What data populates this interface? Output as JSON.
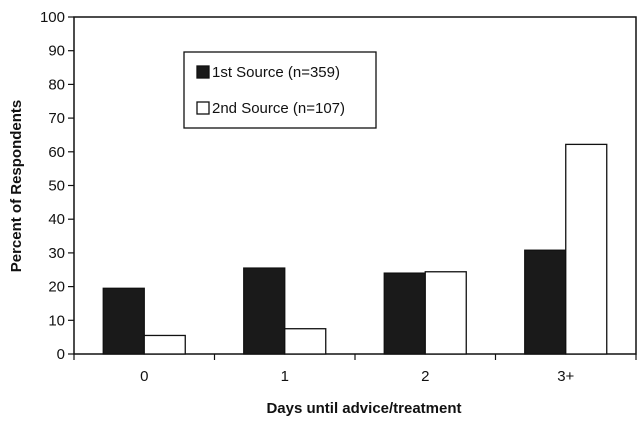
{
  "chart_data": {
    "type": "bar",
    "title": "",
    "xlabel": "Days until advice/treatment",
    "ylabel": "Percent of Respondents",
    "categories": [
      "0",
      "1",
      "2",
      "3+"
    ],
    "ylim": [
      0,
      100
    ],
    "yticks": [
      "0",
      "10",
      "20",
      "30",
      "40",
      "50",
      "60",
      "70",
      "80",
      "90",
      "100"
    ],
    "grid": false,
    "legend_placement": "top-left",
    "series": [
      {
        "name": "1st Source (n=359)",
        "values": [
          19.5,
          25.5,
          24,
          30.8
        ],
        "color": "#1a1a1a"
      },
      {
        "name": "2nd Source (n=107)",
        "values": [
          5.5,
          7.5,
          24.4,
          62.2
        ],
        "color": "#ffffff"
      }
    ]
  }
}
